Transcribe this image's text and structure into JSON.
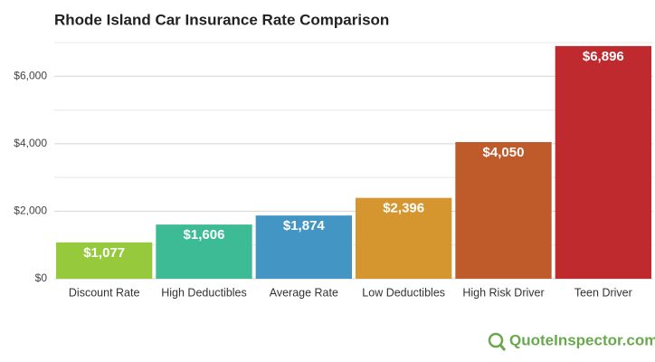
{
  "chart_data": {
    "type": "bar",
    "title": "Rhode Island Car Insurance Rate Comparison",
    "categories": [
      "Discount Rate",
      "High Deductibles",
      "Average Rate",
      "Low Deductibles",
      "High Risk Driver",
      "Teen Driver"
    ],
    "values": [
      1077,
      1606,
      1874,
      2396,
      4050,
      6896
    ],
    "value_labels": [
      "$1,077",
      "$1,606",
      "$1,874",
      "$2,396",
      "$4,050",
      "$6,896"
    ],
    "colors": [
      "#97c93d",
      "#3dbb95",
      "#4395c4",
      "#d6962f",
      "#bf5a2b",
      "#bf2a2e"
    ],
    "ylim": [
      0,
      7000
    ],
    "yticks": [
      {
        "value": 0,
        "label": "$0"
      },
      {
        "value": 2000,
        "label": "$2,000"
      },
      {
        "value": 4000,
        "label": "$4,000"
      },
      {
        "value": 6000,
        "label": "$6,000"
      }
    ],
    "minor_yticks": [
      1000,
      3000,
      5000,
      7000
    ],
    "grid": true,
    "watermark": "QuoteInspector.com"
  }
}
